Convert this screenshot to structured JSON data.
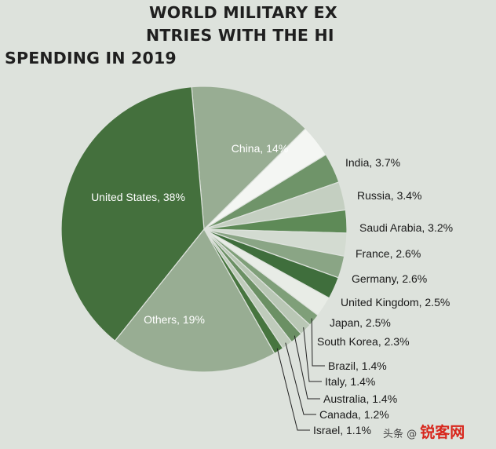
{
  "header": {
    "title_line1": "WORLD MILITARY EX",
    "title_line2": "NTRIES WITH THE HI",
    "title_line3": "SPENDING IN 2019"
  },
  "watermark": {
    "prefix": "头条 @",
    "site": "锐客网"
  },
  "chart_data": {
    "type": "pie",
    "title": "SPENDING IN 2019",
    "unit": "%",
    "slices": [
      {
        "label": "China, 14%",
        "value": 14,
        "color": "#98ad93",
        "placement": "inside"
      },
      {
        "label": "India, 3.7%",
        "value": 3.7,
        "color": "#f4f6f3",
        "placement": "outside"
      },
      {
        "label": "Russia, 3.4%",
        "value": 3.4,
        "color": "#6f9469",
        "placement": "outside"
      },
      {
        "label": "Saudi Arabia, 3.2%",
        "value": 3.2,
        "color": "#c4cfc1",
        "placement": "outside"
      },
      {
        "label": "France, 2.6%",
        "value": 2.6,
        "color": "#5e8a57",
        "placement": "outside"
      },
      {
        "label": "Germany, 2.6%",
        "value": 2.6,
        "color": "#d3dbd1",
        "placement": "outside"
      },
      {
        "label": "United Kingdom, 2.5%",
        "value": 2.5,
        "color": "#8aa585",
        "placement": "outside"
      },
      {
        "label": "Japan, 2.5%",
        "value": 2.5,
        "color": "#3f6e3c",
        "placement": "outside"
      },
      {
        "label": "South Korea, 2.3%",
        "value": 2.3,
        "color": "#e8ece6",
        "placement": "outside"
      },
      {
        "label": "Brazil, 1.4%",
        "value": 1.4,
        "color": "#7f9f79",
        "placement": "leader"
      },
      {
        "label": "Italy, 1.4%",
        "value": 1.4,
        "color": "#b9c7b5",
        "placement": "leader"
      },
      {
        "label": "Australia, 1.4%",
        "value": 1.4,
        "color": "#6b9064",
        "placement": "leader"
      },
      {
        "label": "Canada, 1.2%",
        "value": 1.2,
        "color": "#bfcbbb",
        "placement": "leader"
      },
      {
        "label": "Israel, 1.1%",
        "value": 1.1,
        "color": "#47753f",
        "placement": "leader"
      },
      {
        "label": "Others, 19%",
        "value": 19,
        "color": "#98ad93",
        "placement": "inside"
      },
      {
        "label": "United States, 38%",
        "value": 38,
        "color": "#44703d",
        "placement": "inside"
      }
    ]
  }
}
